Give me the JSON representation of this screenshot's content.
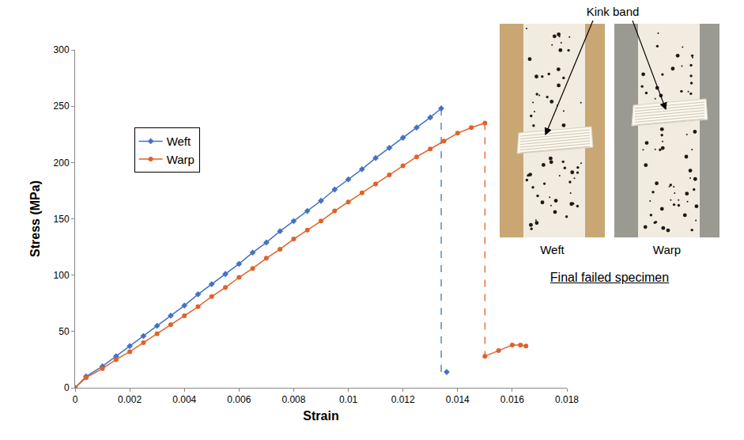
{
  "chart_data": {
    "type": "line",
    "x_label": "Strain",
    "y_label": "Stress (MPa)",
    "xlim": [
      0,
      0.018
    ],
    "xticks": [
      0,
      0.002,
      0.004,
      0.006,
      0.008,
      0.01,
      0.012,
      0.014,
      0.016,
      0.018
    ],
    "ylim": [
      0,
      300
    ],
    "yticks": [
      0,
      50,
      100,
      150,
      200,
      250,
      300
    ],
    "grid": false,
    "legend": "upper left",
    "series": [
      {
        "name": "Weft",
        "color": "#4472c4",
        "marker": "diamond",
        "x": [
          0,
          0.0004,
          0.001,
          0.0015,
          0.002,
          0.0025,
          0.003,
          0.0035,
          0.004,
          0.0045,
          0.005,
          0.0055,
          0.006,
          0.0065,
          0.007,
          0.0075,
          0.008,
          0.0085,
          0.009,
          0.0095,
          0.01,
          0.0105,
          0.011,
          0.0115,
          0.012,
          0.0125,
          0.013,
          0.0134
        ],
        "values": [
          0,
          10,
          19,
          28,
          37,
          46,
          55,
          64,
          73,
          83,
          92,
          101,
          110,
          120,
          129,
          139,
          148,
          157,
          166,
          176,
          185,
          194,
          204,
          213,
          222,
          231,
          240,
          248
        ]
      },
      {
        "name": "Warp",
        "color": "#e0622a",
        "marker": "circle",
        "x": [
          0,
          0.0004,
          0.001,
          0.0015,
          0.002,
          0.0025,
          0.003,
          0.0035,
          0.004,
          0.0045,
          0.005,
          0.0055,
          0.006,
          0.0065,
          0.007,
          0.0075,
          0.008,
          0.0085,
          0.009,
          0.0095,
          0.01,
          0.0105,
          0.011,
          0.0115,
          0.012,
          0.0125,
          0.013,
          0.0135,
          0.014,
          0.0145,
          0.015
        ],
        "values": [
          0,
          9,
          17,
          25,
          32,
          40,
          48,
          56,
          64,
          72,
          81,
          89,
          98,
          106,
          115,
          123,
          132,
          140,
          148,
          157,
          165,
          173,
          181,
          189,
          197,
          205,
          212,
          219,
          226,
          231,
          235
        ]
      },
      {
        "color": "#4472c4",
        "marker": "diamond",
        "x": [
          0.0136
        ],
        "values": [
          14
        ]
      },
      {
        "color": "#e0622a",
        "marker": "circle",
        "x": [
          0.015,
          0.0155,
          0.016,
          0.0163,
          0.0165
        ],
        "values": [
          28,
          33,
          38,
          38,
          37
        ]
      },
      {
        "color": "#4472c4",
        "line_style": "dashed",
        "x": [
          0.0134,
          0.0134
        ],
        "values": [
          248,
          14
        ]
      },
      {
        "color": "#e0622a",
        "line_style": "dashed",
        "x": [
          0.015,
          0.015
        ],
        "values": [
          235,
          28
        ]
      }
    ]
  },
  "inset": {
    "label": "Kink band",
    "panels": [
      {
        "caption": "Weft"
      },
      {
        "caption": "Warp"
      }
    ],
    "title": "Final failed specimen"
  }
}
